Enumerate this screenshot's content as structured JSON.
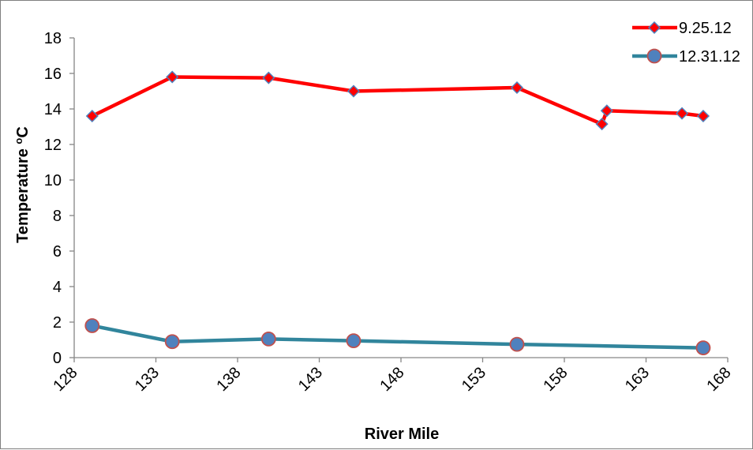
{
  "chart_data": {
    "type": "line",
    "xlabel": "River Mile",
    "ylabel": "Temperature oC",
    "ylabel_parts": {
      "main": "Temperature ",
      "superscript": "o",
      "unit": "C"
    },
    "xlim": [
      128,
      168
    ],
    "ylim": [
      0,
      18
    ],
    "x_ticks": [
      "128",
      "133",
      "138",
      "143",
      "148",
      "153",
      "158",
      "163",
      "168"
    ],
    "y_ticks": [
      "0",
      "2",
      "4",
      "6",
      "8",
      "10",
      "12",
      "14",
      "16",
      "18"
    ],
    "legend_position": "top-right",
    "grid": false,
    "series": [
      {
        "name": "9.25.12",
        "color": "#ff0000",
        "marker": "diamond",
        "marker_fill": "#ff0000",
        "marker_stroke": "#4f81bd",
        "points": [
          {
            "x": 129.1,
            "y": 13.6
          },
          {
            "x": 134.0,
            "y": 15.8
          },
          {
            "x": 139.9,
            "y": 15.75
          },
          {
            "x": 145.1,
            "y": 15.0
          },
          {
            "x": 155.1,
            "y": 15.2
          },
          {
            "x": 160.3,
            "y": 13.15
          },
          {
            "x": 160.6,
            "y": 13.9
          },
          {
            "x": 165.2,
            "y": 13.75
          },
          {
            "x": 166.5,
            "y": 13.6
          }
        ]
      },
      {
        "name": "12.31.12",
        "color": "#31859c",
        "marker": "circle",
        "marker_fill": "#4f81bd",
        "marker_stroke": "#c0504d",
        "points": [
          {
            "x": 129.1,
            "y": 1.8
          },
          {
            "x": 134.0,
            "y": 0.9
          },
          {
            "x": 139.9,
            "y": 1.05
          },
          {
            "x": 145.1,
            "y": 0.95
          },
          {
            "x": 155.1,
            "y": 0.75
          },
          {
            "x": 166.5,
            "y": 0.55
          }
        ]
      }
    ]
  }
}
